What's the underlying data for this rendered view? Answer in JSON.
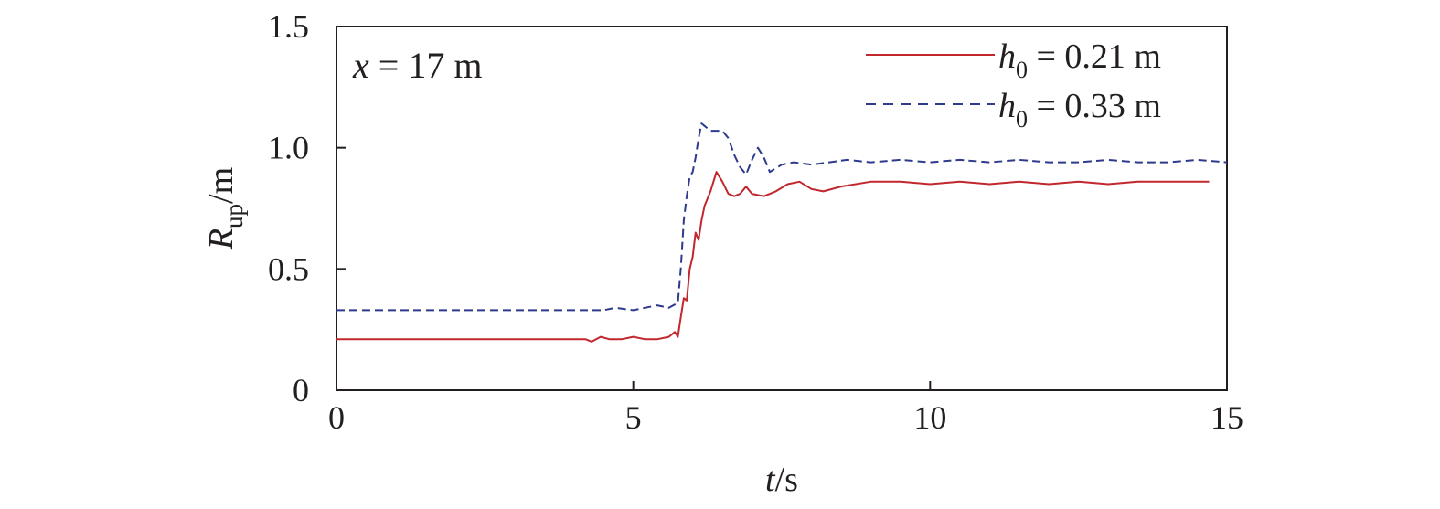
{
  "chart_data": {
    "type": "line",
    "xlabel": {
      "var": "t",
      "unit": "/s"
    },
    "ylabel": {
      "var": "R",
      "sub": "up",
      "unit": "/m"
    },
    "xlim": [
      0,
      15
    ],
    "ylim": [
      0,
      1.5
    ],
    "xticks": [
      0,
      5,
      10,
      15
    ],
    "xtick_labels": [
      "0",
      "5",
      "10",
      "15"
    ],
    "yticks": [
      0,
      0.5,
      1.0,
      1.5
    ],
    "ytick_labels": [
      "0",
      "0.5",
      "1.0",
      "1.5"
    ],
    "grid": false,
    "legend_position": "top-right",
    "annotation": {
      "var": "x",
      "rest": " = 17 m"
    },
    "series": [
      {
        "name": "h0 = 0.21 m",
        "legend": {
          "var": "h",
          "sub": "0",
          "rest": " = 0.21 m"
        },
        "color": "#c1272d",
        "style": "solid",
        "x": [
          0,
          4.2,
          4.3,
          4.45,
          4.6,
          4.8,
          5.0,
          5.2,
          5.4,
          5.6,
          5.7,
          5.75,
          5.8,
          5.85,
          5.9,
          5.95,
          6.0,
          6.05,
          6.1,
          6.15,
          6.2,
          6.3,
          6.4,
          6.5,
          6.6,
          6.7,
          6.8,
          6.9,
          7.0,
          7.2,
          7.4,
          7.6,
          7.8,
          8.0,
          8.2,
          8.5,
          9.0,
          9.5,
          10.0,
          10.5,
          11.0,
          11.5,
          12.0,
          12.5,
          13.0,
          13.5,
          14.0,
          14.7
        ],
        "y": [
          0.21,
          0.21,
          0.2,
          0.22,
          0.21,
          0.21,
          0.22,
          0.21,
          0.21,
          0.22,
          0.24,
          0.22,
          0.3,
          0.38,
          0.37,
          0.5,
          0.55,
          0.65,
          0.62,
          0.7,
          0.76,
          0.82,
          0.9,
          0.86,
          0.81,
          0.8,
          0.81,
          0.84,
          0.81,
          0.8,
          0.82,
          0.85,
          0.86,
          0.83,
          0.82,
          0.84,
          0.86,
          0.86,
          0.85,
          0.86,
          0.85,
          0.86,
          0.85,
          0.86,
          0.85,
          0.86,
          0.86,
          0.86
        ]
      },
      {
        "name": "h0 = 0.33 m",
        "legend": {
          "var": "h",
          "sub": "0",
          "rest": " = 0.33 m"
        },
        "color": "#2e3a8c",
        "style": "dashed",
        "x": [
          0,
          4.3,
          4.5,
          4.7,
          5.0,
          5.2,
          5.4,
          5.6,
          5.75,
          5.8,
          5.85,
          5.9,
          5.95,
          6.0,
          6.05,
          6.1,
          6.15,
          6.2,
          6.3,
          6.4,
          6.5,
          6.6,
          6.7,
          6.8,
          6.9,
          7.0,
          7.1,
          7.2,
          7.3,
          7.5,
          7.7,
          8.0,
          8.3,
          8.6,
          9.0,
          9.5,
          10.0,
          10.5,
          11.0,
          11.5,
          12.0,
          12.5,
          13.0,
          13.5,
          14.0,
          14.5,
          15.0
        ],
        "y": [
          0.33,
          0.33,
          0.33,
          0.34,
          0.33,
          0.34,
          0.35,
          0.34,
          0.36,
          0.5,
          0.7,
          0.8,
          0.88,
          0.9,
          0.96,
          1.04,
          1.1,
          1.09,
          1.07,
          1.07,
          1.07,
          1.04,
          0.97,
          0.92,
          0.89,
          0.95,
          1.0,
          0.96,
          0.9,
          0.93,
          0.94,
          0.93,
          0.94,
          0.95,
          0.94,
          0.95,
          0.94,
          0.95,
          0.94,
          0.95,
          0.94,
          0.94,
          0.95,
          0.94,
          0.94,
          0.95,
          0.94
        ]
      }
    ]
  }
}
